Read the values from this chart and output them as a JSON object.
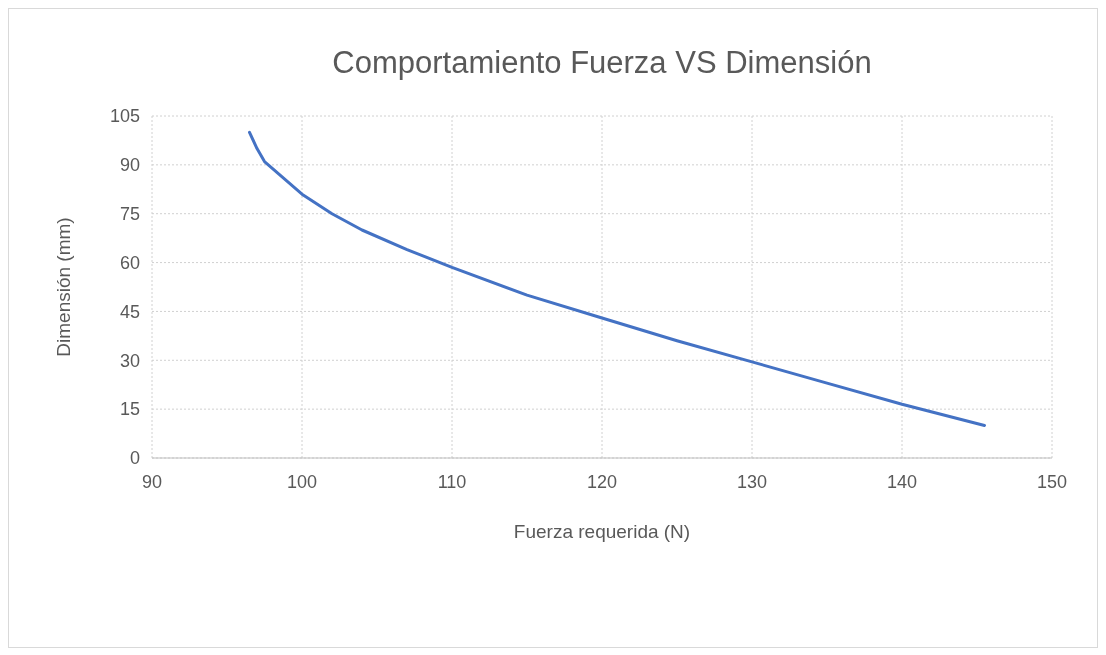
{
  "chart_data": {
    "type": "line",
    "title": "Comportamiento Fuerza VS Dimensión",
    "xlabel": "Fuerza requerida (N)",
    "ylabel": "Dimensión (mm)",
    "series": [
      {
        "color": "#4472c4",
        "x": [
          96.5,
          97,
          97.5,
          98.5,
          100,
          102,
          104,
          107,
          110,
          115,
          120,
          125,
          130,
          135,
          140,
          145.5
        ],
        "values": [
          100,
          95,
          91,
          87,
          81,
          75,
          70,
          64,
          58.5,
          50,
          43,
          36,
          29.5,
          23,
          16.5,
          10
        ]
      }
    ],
    "xlim": [
      90,
      150
    ],
    "xticks": [
      90,
      100,
      110,
      120,
      130,
      140,
      150
    ],
    "ylim": [
      0,
      105
    ],
    "yticks": [
      0,
      15,
      30,
      45,
      60,
      75,
      90,
      105
    ],
    "grid": true,
    "legend": false,
    "marker": "none",
    "line_style": "solid"
  }
}
